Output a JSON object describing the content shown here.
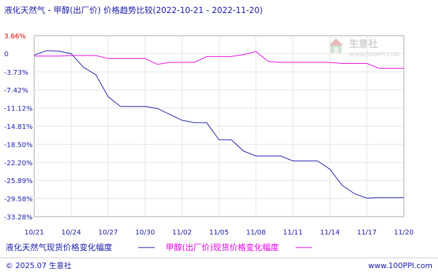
{
  "chart_data": {
    "type": "line",
    "title": "液化天然气 - 甲醇(出厂价) 价格趋势比较(2022-10-21 - 2022-11-20)",
    "xlabel": "",
    "ylabel": "",
    "x": [
      "10/21",
      "10/22",
      "10/23",
      "10/24",
      "10/25",
      "10/26",
      "10/27",
      "10/28",
      "10/29",
      "10/30",
      "10/31",
      "11/01",
      "11/02",
      "11/03",
      "11/04",
      "11/05",
      "11/06",
      "11/07",
      "11/08",
      "11/09",
      "11/10",
      "11/11",
      "11/12",
      "11/13",
      "11/14",
      "11/15",
      "11/16",
      "11/17",
      "11/18",
      "11/19",
      "11/20"
    ],
    "x_ticks": [
      "10/21",
      "10/24",
      "10/27",
      "10/30",
      "11/02",
      "11/05",
      "11/08",
      "11/11",
      "11/14",
      "11/17",
      "11/20"
    ],
    "y_ticks": [
      "3.66%",
      "0",
      "-3.73%",
      "-7.42%",
      "-11.12%",
      "-14.81%",
      "-18.50%",
      "-22.20%",
      "-25.89%",
      "-29.58%",
      "-33.28%"
    ],
    "y_tick_values": [
      3.66,
      0,
      -3.73,
      -7.42,
      -11.12,
      -14.81,
      -18.5,
      -22.2,
      -25.89,
      -29.58,
      -33.28
    ],
    "ylim": [
      -33.28,
      3.66
    ],
    "grid": true,
    "legend_position": "bottom",
    "series": [
      {
        "name": "液化天然气现货价格变化幅度",
        "color": "#1a1aa6",
        "values": [
          -0.3,
          0.6,
          0.5,
          0.0,
          -2.8,
          -4.3,
          -8.8,
          -10.8,
          -10.8,
          -10.8,
          -11.2,
          -12.4,
          -13.6,
          -14.1,
          -14.1,
          -17.6,
          -17.6,
          -19.9,
          -20.9,
          -20.9,
          -20.9,
          -21.9,
          -21.9,
          -21.9,
          -23.6,
          -26.9,
          -28.6,
          -29.5,
          -29.4,
          -29.4,
          -29.4
        ]
      },
      {
        "name": "甲醇(出厂价)现货价格变化幅度",
        "color": "#e600e6",
        "values": [
          -0.5,
          -0.5,
          -0.5,
          -0.4,
          -0.4,
          -0.4,
          -1.0,
          -1.0,
          -1.0,
          -1.0,
          -2.2,
          -1.8,
          -1.8,
          -1.8,
          -0.6,
          -0.6,
          -0.6,
          -0.2,
          0.4,
          -1.6,
          -1.8,
          -1.8,
          -1.8,
          -1.8,
          -1.8,
          -2.0,
          -2.0,
          -2.0,
          -3.0,
          -3.0,
          -3.0
        ]
      }
    ]
  },
  "watermark": {
    "brand": "生意社",
    "url": "WWW.100PPI.COM"
  },
  "footer": {
    "left": "© 2025.07 生意社",
    "right": "www.100PPI.com"
  }
}
